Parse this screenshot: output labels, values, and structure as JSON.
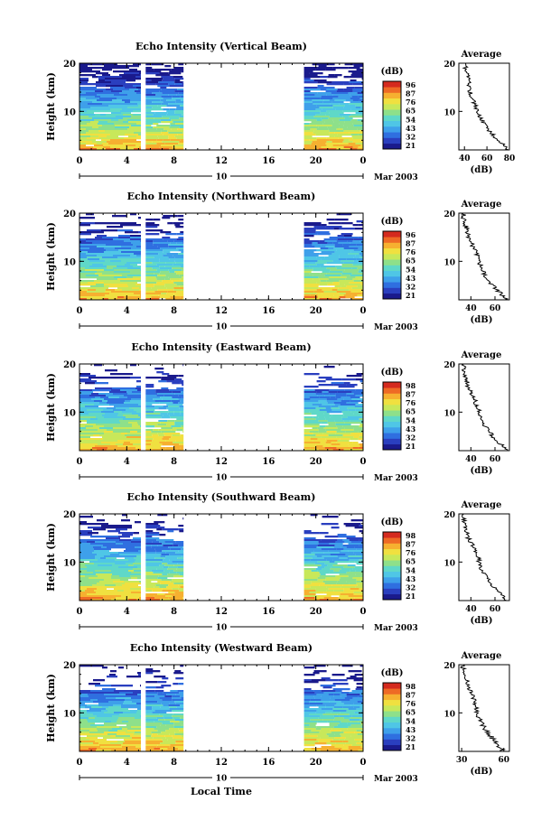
{
  "figure": {
    "x_axis_label": "Local Time",
    "ylabel": "Height (km)",
    "date_label": "Mar 2003",
    "day_label": "10",
    "average_title": "Average",
    "colorbar_unit": "(dB)",
    "average_xlabel": "(dB)"
  },
  "colors": {
    "scale": [
      "#1a1a8c",
      "#2a3fbf",
      "#2f6fe0",
      "#3ea0ea",
      "#4fc6e6",
      "#5fd8c8",
      "#8ee08a",
      "#c8e85a",
      "#f0e040",
      "#f6b030",
      "#ee6a25",
      "#d42a1e"
    ],
    "profile_line": "#000000",
    "no_data": "#ffffff"
  },
  "chart_data": [
    {
      "type": "heatmap",
      "title": "Echo Intensity (Vertical Beam)",
      "xlabel": "Local Time",
      "ylabel": "Height (km)",
      "x_ticks": [
        "0",
        "4",
        "8",
        "12",
        "16",
        "20",
        "0"
      ],
      "xlim": [
        0,
        24
      ],
      "ylim": [
        2,
        20
      ],
      "y_ticks": [
        "20",
        "10"
      ],
      "data_segments_hours": [
        [
          0,
          5.2
        ],
        [
          5.6,
          8.8
        ],
        [
          19,
          24
        ]
      ],
      "colorbar": {
        "unit": "(dB)",
        "ticks": [
          "96",
          "87",
          "76",
          "65",
          "54",
          "43",
          "32",
          "21"
        ],
        "range": [
          21,
          96
        ]
      },
      "average_profile": {
        "title": "Average",
        "xlabel": "(dB)",
        "x_ticks": [
          "40",
          "60",
          "80"
        ],
        "xlim": [
          35,
          80
        ],
        "heights_km": [
          2,
          3,
          4,
          5,
          6,
          7,
          8,
          9,
          10,
          11,
          12,
          13,
          14,
          15,
          16,
          17,
          18,
          19,
          20
        ],
        "values_db": [
          78,
          75,
          70,
          66,
          62,
          59,
          56,
          54,
          52,
          50,
          48,
          46,
          45,
          44,
          44,
          43,
          42,
          41,
          41
        ]
      }
    },
    {
      "type": "heatmap",
      "title": "Echo Intensity (Northward Beam)",
      "xlabel": "Local Time",
      "ylabel": "Height (km)",
      "x_ticks": [
        "0",
        "4",
        "8",
        "12",
        "16",
        "20",
        "0"
      ],
      "xlim": [
        0,
        24
      ],
      "ylim": [
        2,
        20
      ],
      "y_ticks": [
        "20",
        "10"
      ],
      "data_segments_hours": [
        [
          0,
          5.2
        ],
        [
          5.6,
          8.8
        ],
        [
          19,
          24
        ]
      ],
      "colorbar": {
        "unit": "(dB)",
        "ticks": [
          "96",
          "87",
          "76",
          "65",
          "54",
          "43",
          "32",
          "21"
        ],
        "range": [
          21,
          96
        ]
      },
      "average_profile": {
        "title": "Average",
        "xlabel": "(dB)",
        "x_ticks": [
          "40",
          "60"
        ],
        "xlim": [
          30,
          72
        ],
        "heights_km": [
          2,
          3,
          4,
          5,
          6,
          7,
          8,
          9,
          10,
          11,
          12,
          13,
          14,
          15,
          16,
          17,
          18,
          19,
          20
        ],
        "values_db": [
          70,
          66,
          62,
          58,
          55,
          52,
          50,
          48,
          47,
          46,
          44,
          42,
          40,
          38,
          37,
          36,
          35,
          34,
          34
        ]
      }
    },
    {
      "type": "heatmap",
      "title": "Echo Intensity (Eastward Beam)",
      "xlabel": "Local Time",
      "ylabel": "Height (km)",
      "x_ticks": [
        "0",
        "4",
        "8",
        "12",
        "16",
        "20",
        "0"
      ],
      "xlim": [
        0,
        24
      ],
      "ylim": [
        2,
        20
      ],
      "y_ticks": [
        "20",
        "10"
      ],
      "data_segments_hours": [
        [
          0,
          5.2
        ],
        [
          5.6,
          8.8
        ],
        [
          19,
          24
        ]
      ],
      "colorbar": {
        "unit": "(dB)",
        "ticks": [
          "98",
          "87",
          "76",
          "65",
          "54",
          "43",
          "32",
          "21"
        ],
        "range": [
          21,
          98
        ]
      },
      "average_profile": {
        "title": "Average",
        "xlabel": "(dB)",
        "x_ticks": [
          "40",
          "60"
        ],
        "xlim": [
          30,
          72
        ],
        "heights_km": [
          2,
          3,
          4,
          5,
          6,
          7,
          8,
          9,
          10,
          11,
          12,
          13,
          14,
          15,
          16,
          17,
          18,
          19,
          20
        ],
        "values_db": [
          70,
          66,
          62,
          58,
          55,
          52,
          50,
          48,
          47,
          46,
          44,
          42,
          40,
          38,
          37,
          36,
          35,
          34,
          34
        ]
      }
    },
    {
      "type": "heatmap",
      "title": "Echo Intensity (Southward Beam)",
      "xlabel": "Local Time",
      "ylabel": "Height (km)",
      "x_ticks": [
        "0",
        "4",
        "8",
        "12",
        "16",
        "20",
        "0"
      ],
      "xlim": [
        0,
        24
      ],
      "ylim": [
        2,
        20
      ],
      "y_ticks": [
        "20",
        "10"
      ],
      "data_segments_hours": [
        [
          0,
          5.2
        ],
        [
          5.6,
          8.8
        ],
        [
          19,
          24
        ]
      ],
      "colorbar": {
        "unit": "(dB)",
        "ticks": [
          "98",
          "87",
          "76",
          "65",
          "54",
          "43",
          "32",
          "21"
        ],
        "range": [
          21,
          98
        ]
      },
      "average_profile": {
        "title": "Average",
        "xlabel": "(dB)",
        "x_ticks": [
          "40",
          "60"
        ],
        "xlim": [
          30,
          72
        ],
        "heights_km": [
          2,
          3,
          4,
          5,
          6,
          7,
          8,
          9,
          10,
          11,
          12,
          13,
          14,
          15,
          16,
          17,
          18,
          19,
          20
        ],
        "values_db": [
          70,
          66,
          62,
          58,
          55,
          52,
          50,
          48,
          47,
          46,
          44,
          42,
          40,
          38,
          37,
          36,
          35,
          34,
          34
        ]
      }
    },
    {
      "type": "heatmap",
      "title": "Echo Intensity (Westward Beam)",
      "xlabel": "Local Time",
      "ylabel": "Height (km)",
      "x_ticks": [
        "0",
        "4",
        "8",
        "12",
        "16",
        "20",
        "0"
      ],
      "xlim": [
        0,
        24
      ],
      "ylim": [
        2,
        20
      ],
      "y_ticks": [
        "20",
        "10"
      ],
      "data_segments_hours": [
        [
          0,
          5.2
        ],
        [
          5.6,
          8.8
        ],
        [
          19,
          24
        ]
      ],
      "colorbar": {
        "unit": "(dB)",
        "ticks": [
          "98",
          "87",
          "76",
          "65",
          "54",
          "43",
          "32",
          "21"
        ],
        "range": [
          21,
          98
        ]
      },
      "average_profile": {
        "title": "Average",
        "xlabel": "(dB)",
        "x_ticks": [
          "30",
          "60"
        ],
        "xlim": [
          28,
          64
        ],
        "heights_km": [
          2,
          3,
          4,
          5,
          6,
          7,
          8,
          9,
          10,
          11,
          12,
          13,
          14,
          15,
          16,
          17,
          18,
          19,
          20
        ],
        "values_db": [
          60,
          57,
          54,
          51,
          48,
          46,
          44,
          42,
          41,
          40,
          39,
          38,
          37,
          35,
          34,
          33,
          32,
          31,
          31
        ]
      }
    }
  ]
}
